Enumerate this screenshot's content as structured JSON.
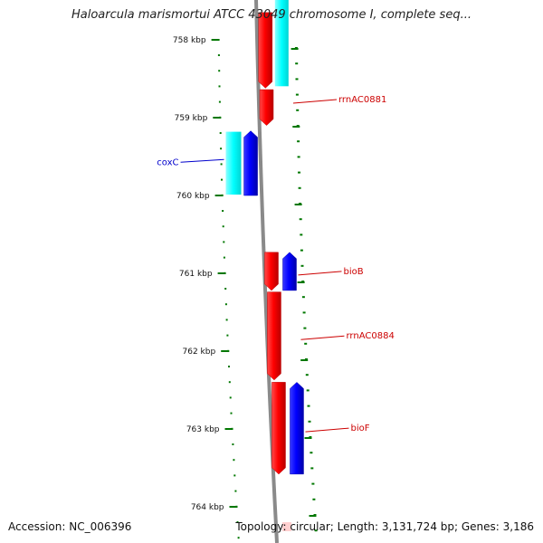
{
  "title": "Haloarcula marismortui ATCC 43049 chromosome I, complete seq...",
  "accession": "Accession: NC_006396",
  "topology": "Topology: circular; Length: 3,131,724 bp; Genes: 3,186",
  "ruler": {
    "unit": "kbp",
    "major_ticks": [
      "758 kbp",
      "759 kbp",
      "760 kbp",
      "761 kbp",
      "762 kbp",
      "763 kbp",
      "764 kbp"
    ]
  },
  "genes": [
    {
      "label": "",
      "strand": "forward",
      "color": "#ff0000",
      "start_kbp": 757.65,
      "end_kbp": 758.62
    },
    {
      "label": "rrnAC0881",
      "strand": "forward",
      "color": "#ff0000",
      "start_kbp": 758.64,
      "end_kbp": 759.1
    },
    {
      "label": "coxC",
      "strand": "reverse",
      "color": "#0000ff",
      "start_kbp": 759.17,
      "end_kbp": 760.0
    },
    {
      "label": "bioB",
      "strand": "forward",
      "color": "#ff0000",
      "start_kbp": 760.73,
      "end_kbp": 761.22
    },
    {
      "label": "",
      "strand": "reverse",
      "color": "#0000ff",
      "start_kbp": 760.73,
      "end_kbp": 761.22
    },
    {
      "label": "rrnAC0884",
      "strand": "forward",
      "color": "#ff0000",
      "start_kbp": 761.24,
      "end_kbp": 762.37
    },
    {
      "label": "bioF",
      "strand": "forward",
      "color": "#ff0000",
      "start_kbp": 762.4,
      "end_kbp": 763.58
    },
    {
      "label": "",
      "strand": "reverse",
      "color": "#0000ff",
      "start_kbp": 762.4,
      "end_kbp": 763.58
    }
  ],
  "legend_colors": {
    "forward_cds": "#ff0000",
    "reverse_cds": "#0000ff",
    "cds_shadow": "#00ffff",
    "tick": "#007700",
    "backbone": "#888888",
    "forward_label": "#cc0000",
    "reverse_label": "#0000cc"
  }
}
